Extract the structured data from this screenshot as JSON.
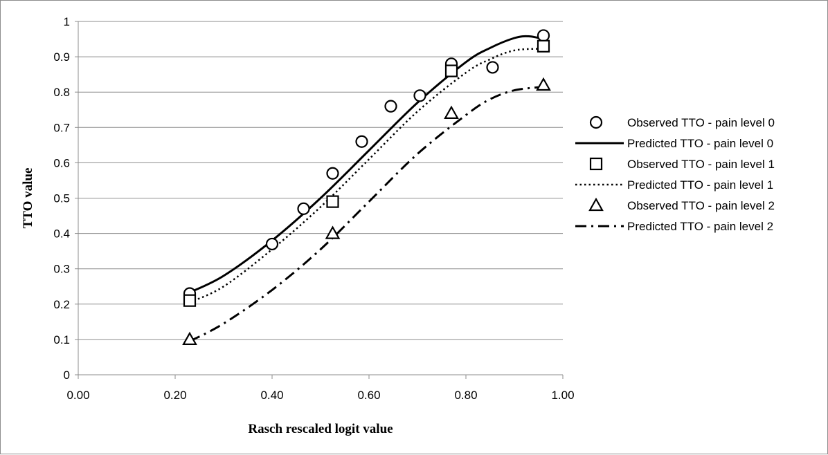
{
  "chart_data": {
    "type": "scatter",
    "title": "",
    "xlabel": "Rasch rescaled logit value",
    "ylabel": "TTO value",
    "xlim": [
      0,
      1
    ],
    "ylim": [
      0,
      1
    ],
    "x_ticks": [
      "0.00",
      "0.20",
      "0.40",
      "0.60",
      "0.80",
      "1.00"
    ],
    "y_ticks": [
      "0",
      "0.1",
      "0.2",
      "0.3",
      "0.4",
      "0.5",
      "0.6",
      "0.7",
      "0.8",
      "0.9",
      "1"
    ],
    "grid": "horizontal",
    "legend_position": "right",
    "colors": {
      "series": "#000000",
      "grid": "#8c8c8c",
      "border": "#8c8c8c"
    },
    "series": [
      {
        "name": "Observed TTO - pain level 0",
        "kind": "marker",
        "marker": "circle",
        "points": [
          [
            0.23,
            0.23
          ],
          [
            0.4,
            0.37
          ],
          [
            0.465,
            0.47
          ],
          [
            0.525,
            0.57
          ],
          [
            0.585,
            0.66
          ],
          [
            0.645,
            0.76
          ],
          [
            0.705,
            0.79
          ],
          [
            0.77,
            0.88
          ],
          [
            0.855,
            0.87
          ],
          [
            0.96,
            0.96
          ]
        ]
      },
      {
        "name": "Predicted TTO - pain level 0",
        "kind": "line",
        "dash": "solid",
        "points": [
          [
            0.23,
            0.233
          ],
          [
            0.3,
            0.28
          ],
          [
            0.4,
            0.38
          ],
          [
            0.5,
            0.5
          ],
          [
            0.6,
            0.635
          ],
          [
            0.7,
            0.77
          ],
          [
            0.8,
            0.885
          ],
          [
            0.85,
            0.925
          ],
          [
            0.9,
            0.953
          ],
          [
            0.93,
            0.958
          ],
          [
            0.96,
            0.95
          ]
        ]
      },
      {
        "name": "Observed TTO - pain level 1",
        "kind": "marker",
        "marker": "square",
        "points": [
          [
            0.23,
            0.21
          ],
          [
            0.525,
            0.49
          ],
          [
            0.77,
            0.86
          ],
          [
            0.96,
            0.93
          ]
        ]
      },
      {
        "name": "Predicted TTO - pain level 1",
        "kind": "line",
        "dash": "dotted",
        "points": [
          [
            0.23,
            0.205
          ],
          [
            0.3,
            0.25
          ],
          [
            0.4,
            0.355
          ],
          [
            0.5,
            0.475
          ],
          [
            0.6,
            0.61
          ],
          [
            0.7,
            0.745
          ],
          [
            0.8,
            0.855
          ],
          [
            0.85,
            0.893
          ],
          [
            0.9,
            0.918
          ],
          [
            0.96,
            0.923
          ]
        ]
      },
      {
        "name": "Observed TTO - pain level 2",
        "kind": "marker",
        "marker": "triangle",
        "points": [
          [
            0.23,
            0.1
          ],
          [
            0.525,
            0.4
          ],
          [
            0.77,
            0.74
          ],
          [
            0.96,
            0.82
          ]
        ]
      },
      {
        "name": "Predicted TTO - pain level 2",
        "kind": "line",
        "dash": "dashdot",
        "points": [
          [
            0.23,
            0.095
          ],
          [
            0.3,
            0.145
          ],
          [
            0.4,
            0.24
          ],
          [
            0.5,
            0.355
          ],
          [
            0.6,
            0.49
          ],
          [
            0.7,
            0.625
          ],
          [
            0.8,
            0.735
          ],
          [
            0.85,
            0.78
          ],
          [
            0.9,
            0.805
          ],
          [
            0.96,
            0.815
          ]
        ]
      }
    ]
  }
}
